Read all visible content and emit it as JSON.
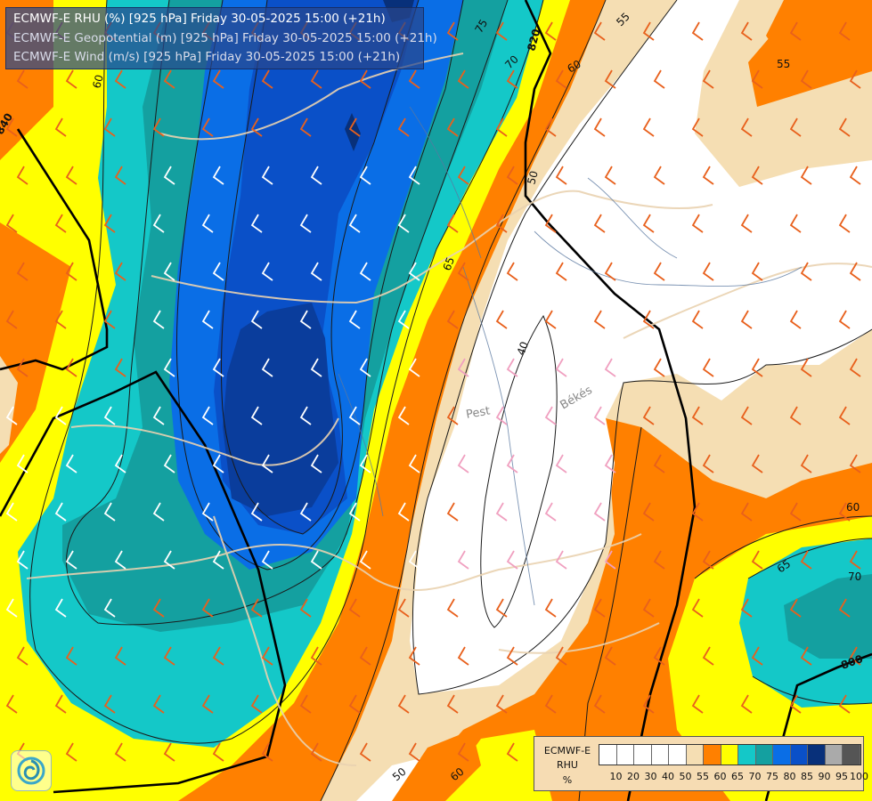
{
  "titles": [
    "ECMWF-E RHU (%) [925 hPa] Friday 30-05-2025 15:00 (+21h)",
    "ECMWF-E Geopotential (m) [925 hPa] Friday 30-05-2025 15:00 (+21h)",
    "ECMWF-E Wind (m/s) [925 hPa] Friday 30-05-2025 15:00 (+21h)"
  ],
  "legend": {
    "title_lines": [
      "ECMWF-E",
      "RHU",
      "%"
    ],
    "levels": [
      "10",
      "20",
      "30",
      "40",
      "50",
      "55",
      "60",
      "65",
      "70",
      "75",
      "80",
      "85",
      "90",
      "95",
      "100"
    ],
    "colors": [
      "#ffffff",
      "#ffffff",
      "#ffffff",
      "#ffffff",
      "#ffffff",
      "#f5deb3",
      "#ff8000",
      "#ffff00",
      "#14c8c8",
      "#14a0a0",
      "#0a6ee6",
      "#0a50c8",
      "#08307a",
      "#aaaaaa",
      "#555555"
    ]
  },
  "rhu_labels": [
    "75",
    "70",
    "60",
    "55",
    "55",
    "60",
    "50",
    "65",
    "40",
    "50",
    "60",
    "60",
    "65",
    "70"
  ],
  "geopotential_labels": [
    "820",
    "840",
    "800"
  ],
  "city_labels": [
    "Pest",
    "Békés"
  ],
  "logo_icon": "ecmwf-swirl-icon",
  "palette": {
    "orange": "#ff8000",
    "yellow": "#ffff00",
    "wheat": "#f5deb3",
    "teal_light": "#14c8c8",
    "teal": "#14a0a0",
    "blue": "#0a6ee6",
    "blue_mid": "#0a50c8",
    "navy": "#08307a",
    "barb_orange": "#e8601c",
    "barb_pink": "#f0a0c0",
    "barb_white": "#ffffff"
  }
}
